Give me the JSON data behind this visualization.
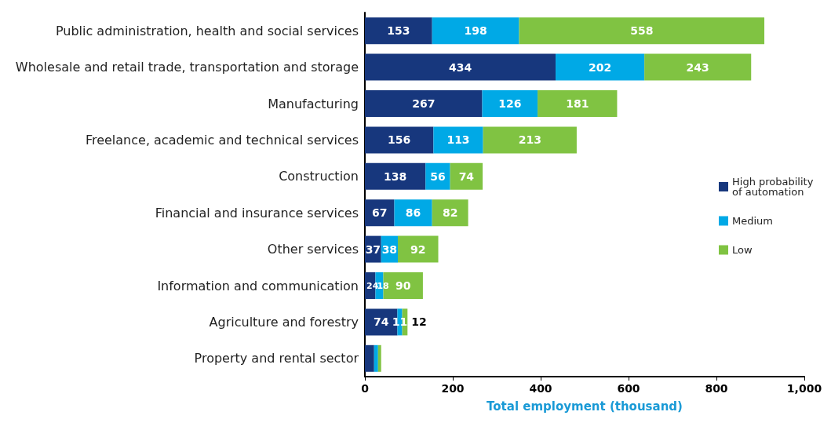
{
  "chart_data": {
    "type": "bar",
    "orientation": "horizontal",
    "stacked": true,
    "xlabel": "Total employment (thousand)",
    "categories": [
      "Public administration, health and social services",
      "Wholesale and retail trade, transportation and storage",
      "Manufacturing",
      "Freelance, academic and technical services",
      "Construction",
      "Financial and insurance services",
      "Other services",
      "Information and communication",
      "Agriculture and forestry",
      "Property and rental sector"
    ],
    "series": [
      {
        "name": "High probability of automation",
        "color": "#17377d",
        "values": [
          153,
          434,
          267,
          156,
          138,
          67,
          37,
          24,
          74,
          21
        ],
        "value_labels": [
          "153",
          "434",
          "267",
          "156",
          "138",
          "67",
          "37",
          "24",
          "74",
          null
        ]
      },
      {
        "name": "Medium",
        "color": "#00a9e6",
        "values": [
          198,
          202,
          126,
          113,
          56,
          86,
          38,
          18,
          11,
          9
        ],
        "value_labels": [
          "198",
          "202",
          "126",
          "113",
          "56",
          "86",
          "38",
          "18",
          "11",
          null
        ]
      },
      {
        "name": "Low",
        "color": "#80c342",
        "values": [
          558,
          243,
          181,
          213,
          74,
          82,
          92,
          90,
          12,
          7
        ],
        "value_labels": [
          "558",
          "243",
          "181",
          "213",
          "74",
          "82",
          "92",
          "90",
          "12",
          null
        ]
      }
    ],
    "xlim": [
      0,
      1000
    ],
    "xticks": [
      0,
      200,
      400,
      600,
      800,
      {
        "value": 1000,
        "label": "1,000"
      }
    ],
    "grid": false,
    "legend": "right"
  }
}
